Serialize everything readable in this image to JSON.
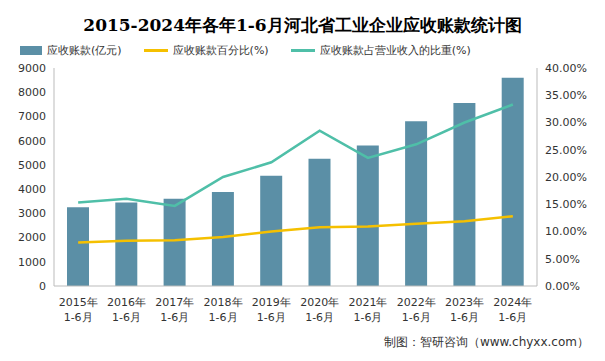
{
  "chart_data": {
    "type": "bar_line",
    "title": "2015-2024年各年1-6月河北省工业企业应收账款统计图",
    "source": "制图：智研咨询（www.chyxx.com）",
    "categories": [
      "2015年\n1-6月",
      "2016年\n1-6月",
      "2017年\n1-6月",
      "2018年\n1-6月",
      "2019年\n1-6月",
      "2020年\n1-6月",
      "2021年\n1-6月",
      "2022年\n1-6月",
      "2023年\n1-6月",
      "2024年\n1-6月"
    ],
    "series": [
      {
        "name": "应收账款(亿元)",
        "type": "bar",
        "color": "#5b8fa6",
        "values": [
          3250,
          3450,
          3600,
          3880,
          4550,
          5250,
          5800,
          6800,
          7550,
          8600
        ]
      },
      {
        "name": "应收账款百分比(%)",
        "type": "line",
        "axis": "y2",
        "color": "#f5c000",
        "values": [
          8.0,
          8.3,
          8.4,
          9.0,
          10.0,
          10.8,
          10.9,
          11.4,
          11.9,
          12.8
        ]
      },
      {
        "name": "应收账款占营业收入的比重(%)",
        "type": "line",
        "axis": "y2",
        "color": "#4fbfa8",
        "values": [
          15.3,
          16.0,
          14.7,
          20.0,
          22.7,
          28.5,
          23.5,
          26.0,
          30.0,
          33.3
        ]
      }
    ],
    "ylim": [
      0,
      9000
    ],
    "yticks": [
      0,
      1000,
      2000,
      3000,
      4000,
      5000,
      6000,
      7000,
      8000,
      9000
    ],
    "y2lim": [
      0,
      40
    ],
    "y2ticks": [
      {
        "value": 0,
        "label": "0.00%"
      },
      {
        "value": 5,
        "label": "5.00%"
      },
      {
        "value": 10,
        "label": "10.00%"
      },
      {
        "value": 15,
        "label": "15.00%"
      },
      {
        "value": 20,
        "label": "20.00%"
      },
      {
        "value": 25,
        "label": "25.00%"
      },
      {
        "value": 30,
        "label": "30.00%"
      },
      {
        "value": 35,
        "label": "35.00%"
      },
      {
        "value": 40,
        "label": "40.00%"
      }
    ],
    "grid": false
  }
}
